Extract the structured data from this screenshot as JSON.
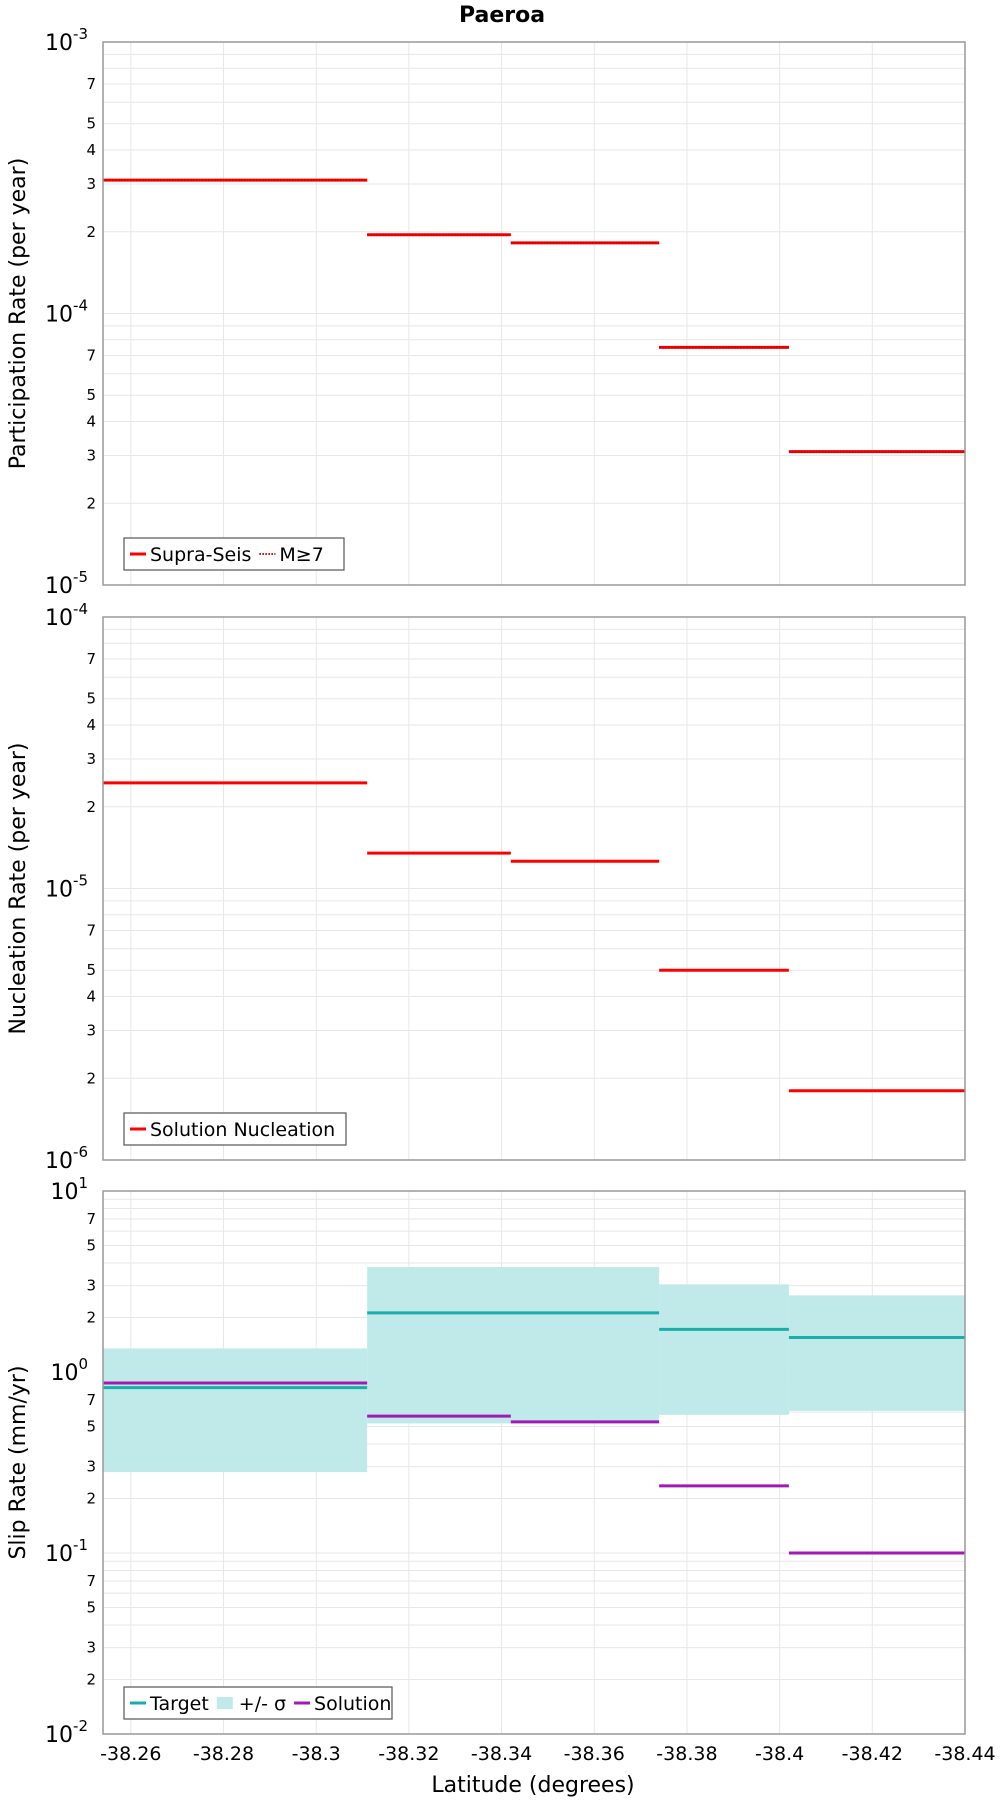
{
  "title": "Paeroa",
  "x_axis": {
    "label": "Latitude (degrees)",
    "range": [
      -38.254,
      -38.44
    ],
    "ticks": [
      -38.26,
      -38.28,
      -38.3,
      -38.32,
      -38.34,
      -38.36,
      -38.38,
      -38.4,
      -38.42,
      -38.44
    ],
    "tick_labels": [
      "-38.26",
      "-38.28",
      "-38.3",
      "-38.32",
      "-38.34",
      "-38.36",
      "-38.38",
      "-38.4",
      "-38.42",
      "-38.44"
    ]
  },
  "colors": {
    "red": "#ff0000",
    "target": "#1aaeaa",
    "band": "#bfeae9",
    "solution": "#a21ab5",
    "grid": "#e7e7e7",
    "frame": "#999999"
  },
  "chart_data": [
    {
      "type": "line",
      "title": "Paeroa",
      "ylabel": "Participation Rate (per year)",
      "yscale": "log",
      "ylim": [
        1e-05,
        0.001
      ],
      "y_major_ticks": [
        {
          "base": "10",
          "exp": "-5"
        },
        {
          "base": "10",
          "exp": "-4"
        },
        {
          "base": "10",
          "exp": "-3"
        }
      ],
      "y_minor_labels": [
        "2",
        "3",
        "4",
        "5",
        "7"
      ],
      "grid": true,
      "legend": {
        "placement": "bottom-left",
        "entries": [
          {
            "label": "Supra-Seis",
            "style": "solid",
            "color": "#ff0000"
          },
          {
            "label": "M≥7",
            "style": "dotted",
            "color": "#ff0000"
          }
        ]
      },
      "series": [
        {
          "name": "Supra-Seis",
          "style": "solid",
          "color": "#ff0000",
          "segments": [
            {
              "x": [
                -38.254,
                -38.311
              ],
              "y": 0.00031
            },
            {
              "x": [
                -38.311,
                -38.342
              ],
              "y": 0.000195
            },
            {
              "x": [
                -38.342,
                -38.374
              ],
              "y": 0.000182
            },
            {
              "x": [
                -38.374,
                -38.402
              ],
              "y": 7.5e-05
            },
            {
              "x": [
                -38.402,
                -38.44
              ],
              "y": 3.1e-05
            }
          ]
        },
        {
          "name": "M≥7",
          "style": "dotted",
          "color": "#ff0000",
          "segments": [
            {
              "x": [
                -38.254,
                -38.311
              ],
              "y": 0.00031
            },
            {
              "x": [
                -38.311,
                -38.342
              ],
              "y": 0.000195
            },
            {
              "x": [
                -38.342,
                -38.374
              ],
              "y": 0.000182
            },
            {
              "x": [
                -38.374,
                -38.402
              ],
              "y": 7.5e-05
            },
            {
              "x": [
                -38.402,
                -38.44
              ],
              "y": 3.1e-05
            }
          ]
        }
      ]
    },
    {
      "type": "line",
      "ylabel": "Nucleation Rate (per year)",
      "yscale": "log",
      "ylim": [
        1e-06,
        0.0001
      ],
      "y_major_ticks": [
        {
          "base": "10",
          "exp": "-6"
        },
        {
          "base": "10",
          "exp": "-5"
        },
        {
          "base": "10",
          "exp": "-4"
        }
      ],
      "y_minor_labels": [
        "2",
        "3",
        "4",
        "5",
        "7"
      ],
      "grid": true,
      "legend": {
        "placement": "bottom-left",
        "entries": [
          {
            "label": "Solution Nucleation",
            "style": "solid",
            "color": "#ff0000"
          }
        ]
      },
      "series": [
        {
          "name": "Solution Nucleation",
          "style": "solid",
          "color": "#ff0000",
          "segments": [
            {
              "x": [
                -38.254,
                -38.311
              ],
              "y": 2.45e-05
            },
            {
              "x": [
                -38.311,
                -38.342
              ],
              "y": 1.35e-05
            },
            {
              "x": [
                -38.342,
                -38.374
              ],
              "y": 1.26e-05
            },
            {
              "x": [
                -38.374,
                -38.402
              ],
              "y": 5e-06
            },
            {
              "x": [
                -38.402,
                -38.44
              ],
              "y": 1.8e-06
            }
          ]
        }
      ]
    },
    {
      "type": "line",
      "ylabel": "Slip Rate (mm/yr)",
      "xlabel": "Latitude (degrees)",
      "yscale": "log",
      "ylim": [
        0.01,
        10
      ],
      "y_major_ticks": [
        {
          "base": "10",
          "exp": "-2"
        },
        {
          "base": "10",
          "exp": "-1"
        },
        {
          "base": "10",
          "exp": "0"
        },
        {
          "base": "10",
          "exp": "1"
        }
      ],
      "y_minor_labels": [
        "2",
        "3",
        "5",
        "7"
      ],
      "grid": true,
      "legend": {
        "placement": "bottom-left",
        "entries": [
          {
            "label": "Target",
            "style": "solid",
            "color": "#1aaeaa"
          },
          {
            "label": "+/- σ",
            "style": "band",
            "color": "#bfeae9"
          },
          {
            "label": "Solution",
            "style": "solid",
            "color": "#a21ab5"
          }
        ]
      },
      "band": {
        "name": "+/- σ",
        "color": "#bfeae9",
        "segments": [
          {
            "x": [
              -38.254,
              -38.311
            ],
            "low": 0.28,
            "high": 1.35
          },
          {
            "x": [
              -38.311,
              -38.374
            ],
            "low": 0.52,
            "high": 3.8
          },
          {
            "x": [
              -38.374,
              -38.402
            ],
            "low": 0.58,
            "high": 3.05
          },
          {
            "x": [
              -38.402,
              -38.44
            ],
            "low": 0.61,
            "high": 2.65
          }
        ]
      },
      "series": [
        {
          "name": "Target",
          "style": "solid",
          "color": "#1aaeaa",
          "segments": [
            {
              "x": [
                -38.254,
                -38.311
              ],
              "y": 0.82
            },
            {
              "x": [
                -38.311,
                -38.374
              ],
              "y": 2.12
            },
            {
              "x": [
                -38.374,
                -38.402
              ],
              "y": 1.72
            },
            {
              "x": [
                -38.402,
                -38.44
              ],
              "y": 1.55
            }
          ]
        },
        {
          "name": "Solution",
          "style": "solid",
          "color": "#a21ab5",
          "segments": [
            {
              "x": [
                -38.254,
                -38.311
              ],
              "y": 0.87
            },
            {
              "x": [
                -38.311,
                -38.342
              ],
              "y": 0.57
            },
            {
              "x": [
                -38.342,
                -38.374
              ],
              "y": 0.53
            },
            {
              "x": [
                -38.374,
                -38.402
              ],
              "y": 0.235
            },
            {
              "x": [
                -38.402,
                -38.44
              ],
              "y": 0.1
            }
          ]
        }
      ]
    }
  ]
}
